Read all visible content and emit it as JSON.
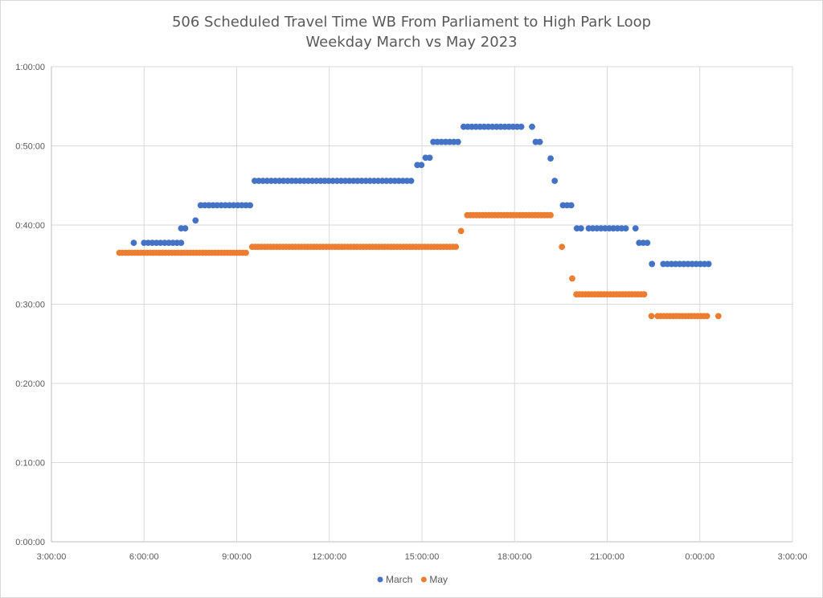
{
  "chart_data": {
    "type": "scatter",
    "title": "506 Scheduled Travel Time WB From Parliament to High Park Loop",
    "subtitle": "Weekday March vs May 2023",
    "xlabel": "",
    "ylabel": "",
    "x_ticks": [
      "3:00:00",
      "6:00:00",
      "9:00:00",
      "12:00:00",
      "15:00:00",
      "18:00:00",
      "21:00:00",
      "0:00:00",
      "3:00:00"
    ],
    "y_ticks": [
      "0:00:00",
      "0:10:00",
      "0:20:00",
      "0:30:00",
      "0:40:00",
      "0:50:00",
      "1:00:00"
    ],
    "xlim": [
      "3:00",
      "3:00 (next day)"
    ],
    "ylim": [
      "0:00",
      "1:00"
    ],
    "grid": true,
    "legend_position": "bottom",
    "series": [
      {
        "name": "March",
        "color": "#4472c4",
        "segments": [
          {
            "start": "5:40",
            "end": "5:40",
            "step_min": 13,
            "y": "0:37:45"
          },
          {
            "start": "6:00",
            "end": "7:12",
            "step_min": 8,
            "y": "0:37:45"
          },
          {
            "start": "7:12",
            "end": "7:20",
            "step_min": 8,
            "y": "0:39:35"
          },
          {
            "start": "7:40",
            "end": "7:40",
            "step_min": 8,
            "y": "0:40:35"
          },
          {
            "start": "7:50",
            "end": "9:26",
            "step_min": 8,
            "y": "0:42:30"
          },
          {
            "start": "9:35",
            "end": "14:43",
            "step_min": 8,
            "y": "0:45:35"
          },
          {
            "start": "14:51",
            "end": "14:59",
            "step_min": 8,
            "y": "0:47:35"
          },
          {
            "start": "15:07",
            "end": "15:15",
            "step_min": 8,
            "y": "0:48:30"
          },
          {
            "start": "15:22",
            "end": "16:14",
            "step_min": 8,
            "y": "0:50:30"
          },
          {
            "start": "16:21",
            "end": "18:13",
            "step_min": 8,
            "y": "0:52:25"
          },
          {
            "start": "18:34",
            "end": "18:34",
            "step_min": 8,
            "y": "0:52:25"
          },
          {
            "start": "18:41",
            "end": "18:49",
            "step_min": 8,
            "y": "0:50:30"
          },
          {
            "start": "19:10",
            "end": "19:10",
            "step_min": 8,
            "y": "0:48:25"
          },
          {
            "start": "19:18",
            "end": "19:18",
            "step_min": 8,
            "y": "0:45:35"
          },
          {
            "start": "19:34",
            "end": "19:50",
            "step_min": 8,
            "y": "0:42:30"
          },
          {
            "start": "20:01",
            "end": "20:09",
            "step_min": 8,
            "y": "0:39:35"
          },
          {
            "start": "20:24",
            "end": "21:36",
            "step_min": 8,
            "y": "0:39:35"
          },
          {
            "start": "21:55",
            "end": "21:55",
            "step_min": 8,
            "y": "0:39:35"
          },
          {
            "start": "22:02",
            "end": "22:18",
            "step_min": 8,
            "y": "0:37:45"
          },
          {
            "start": "22:27",
            "end": "22:27",
            "step_min": 8,
            "y": "0:35:05"
          },
          {
            "start": "22:49",
            "end": "24:17",
            "step_min": 8,
            "y": "0:35:05"
          }
        ]
      },
      {
        "name": "May",
        "color": "#ed7d31",
        "segments": [
          {
            "start": "5:12",
            "end": "9:18",
            "step_min": 6,
            "y": "0:36:30"
          },
          {
            "start": "9:30",
            "end": "16:06",
            "step_min": 6,
            "y": "0:37:15"
          },
          {
            "start": "16:16",
            "end": "16:16",
            "step_min": 6,
            "y": "0:39:15"
          },
          {
            "start": "16:28",
            "end": "19:10",
            "step_min": 6,
            "y": "0:41:15"
          },
          {
            "start": "19:32",
            "end": "19:32",
            "step_min": 6,
            "y": "0:37:15"
          },
          {
            "start": "19:52",
            "end": "19:52",
            "step_min": 6,
            "y": "0:33:15"
          },
          {
            "start": "20:00",
            "end": "22:12",
            "step_min": 6,
            "y": "0:31:15"
          },
          {
            "start": "22:26",
            "end": "22:26",
            "step_min": 6,
            "y": "0:28:30"
          },
          {
            "start": "22:38",
            "end": "24:16",
            "step_min": 6,
            "y": "0:28:30"
          },
          {
            "start": "24:36",
            "end": "24:36",
            "step_min": 6,
            "y": "0:28:30"
          }
        ]
      }
    ]
  }
}
